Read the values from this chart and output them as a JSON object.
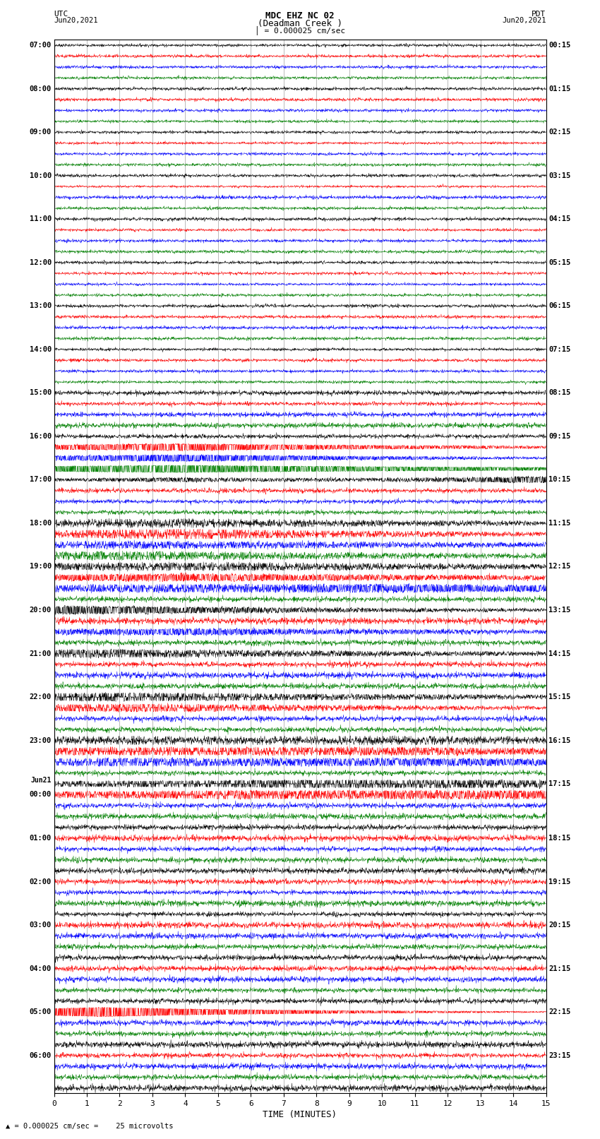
{
  "title_line1": "MDC EHZ NC 02",
  "title_line2": "(Deadman Creek )",
  "scale_label": "= 0.000025 cm/sec",
  "left_label_top": "UTC",
  "left_label_date": "Jun20,2021",
  "right_label_top": "PDT",
  "right_label_date": "Jun20,2021",
  "xlabel": "TIME (MINUTES)",
  "bottom_note": "= 0.000025 cm/sec =    25 microvolts",
  "bg_color": "#ffffff",
  "trace_colors": [
    "black",
    "red",
    "blue",
    "green"
  ],
  "utc_labels": [
    [
      "07:00",
      0
    ],
    [
      "08:00",
      4
    ],
    [
      "09:00",
      8
    ],
    [
      "10:00",
      12
    ],
    [
      "11:00",
      16
    ],
    [
      "12:00",
      20
    ],
    [
      "13:00",
      24
    ],
    [
      "14:00",
      28
    ],
    [
      "15:00",
      32
    ],
    [
      "16:00",
      36
    ],
    [
      "17:00",
      40
    ],
    [
      "18:00",
      44
    ],
    [
      "19:00",
      48
    ],
    [
      "20:00",
      52
    ],
    [
      "21:00",
      56
    ],
    [
      "22:00",
      60
    ],
    [
      "23:00",
      64
    ],
    [
      "Jun21",
      68
    ],
    [
      "00:00",
      69
    ],
    [
      "01:00",
      73
    ],
    [
      "02:00",
      77
    ],
    [
      "03:00",
      81
    ],
    [
      "04:00",
      85
    ],
    [
      "05:00",
      89
    ],
    [
      "06:00",
      93
    ]
  ],
  "pdt_labels": [
    [
      "00:15",
      0
    ],
    [
      "01:15",
      4
    ],
    [
      "02:15",
      8
    ],
    [
      "03:15",
      12
    ],
    [
      "04:15",
      16
    ],
    [
      "05:15",
      20
    ],
    [
      "06:15",
      24
    ],
    [
      "07:15",
      28
    ],
    [
      "08:15",
      32
    ],
    [
      "09:15",
      36
    ],
    [
      "10:15",
      40
    ],
    [
      "11:15",
      44
    ],
    [
      "12:15",
      48
    ],
    [
      "13:15",
      52
    ],
    [
      "14:15",
      56
    ],
    [
      "15:15",
      60
    ],
    [
      "16:15",
      64
    ],
    [
      "17:15",
      68
    ],
    [
      "18:15",
      73
    ],
    [
      "19:15",
      77
    ],
    [
      "20:15",
      81
    ],
    [
      "21:15",
      85
    ],
    [
      "22:15",
      89
    ],
    [
      "23:15",
      93
    ]
  ],
  "num_traces": 97,
  "xmin": 0,
  "xmax": 15,
  "dpi": 100,
  "figwidth": 8.5,
  "figheight": 16.13
}
